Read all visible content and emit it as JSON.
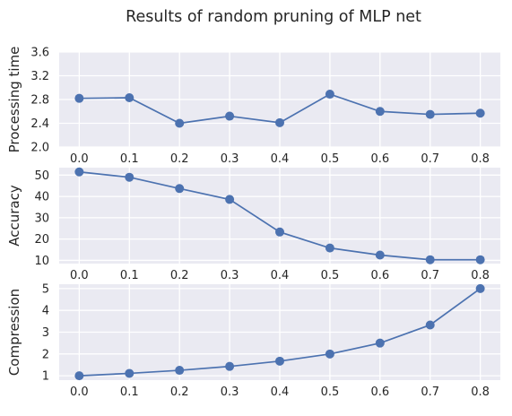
{
  "figure": {
    "title": "Results of random pruning of MLP net"
  },
  "chart_data": [
    {
      "type": "line",
      "ylabel": "Processing time",
      "x": [
        0.0,
        0.1,
        0.2,
        0.3,
        0.4,
        0.5,
        0.6,
        0.7,
        0.8
      ],
      "y": [
        2.82,
        2.83,
        2.4,
        2.52,
        2.41,
        2.89,
        2.6,
        2.55,
        2.57
      ],
      "xlim": [
        -0.04,
        0.84
      ],
      "ylim": [
        2.0,
        3.6
      ],
      "xticks": [
        "0.0",
        "0.1",
        "0.2",
        "0.3",
        "0.4",
        "0.5",
        "0.6",
        "0.7",
        "0.8"
      ],
      "yticks": [
        2.0,
        2.4,
        2.8,
        3.2,
        3.6
      ],
      "ytick_labels": [
        "2.0",
        "2.4",
        "2.8",
        "3.2",
        "3.6"
      ],
      "grid": true,
      "color": "#4c72b0"
    },
    {
      "type": "line",
      "ylabel": "Accuracy",
      "x": [
        0.0,
        0.1,
        0.2,
        0.3,
        0.4,
        0.5,
        0.6,
        0.7,
        0.8
      ],
      "y": [
        51.5,
        49.0,
        43.7,
        38.6,
        23.3,
        15.8,
        12.5,
        10.3,
        10.3
      ],
      "xlim": [
        -0.04,
        0.84
      ],
      "ylim": [
        8.5,
        53.5
      ],
      "xticks": [
        "0.0",
        "0.1",
        "0.2",
        "0.3",
        "0.4",
        "0.5",
        "0.6",
        "0.7",
        "0.8"
      ],
      "yticks": [
        10,
        20,
        30,
        40,
        50
      ],
      "ytick_labels": [
        "10",
        "20",
        "30",
        "40",
        "50"
      ],
      "grid": true,
      "color": "#4c72b0"
    },
    {
      "type": "line",
      "ylabel": "Compression",
      "x": [
        0.0,
        0.1,
        0.2,
        0.3,
        0.4,
        0.5,
        0.6,
        0.7,
        0.8
      ],
      "y": [
        1.0,
        1.11,
        1.25,
        1.43,
        1.67,
        2.0,
        2.5,
        3.33,
        5.0
      ],
      "xlim": [
        -0.04,
        0.84
      ],
      "ylim": [
        0.8,
        5.2
      ],
      "xticks": [
        "0.0",
        "0.1",
        "0.2",
        "0.3",
        "0.4",
        "0.5",
        "0.6",
        "0.7",
        "0.8"
      ],
      "yticks": [
        1,
        2,
        3,
        4,
        5
      ],
      "ytick_labels": [
        "1",
        "2",
        "3",
        "4",
        "5"
      ],
      "grid": true,
      "color": "#4c72b0"
    }
  ]
}
